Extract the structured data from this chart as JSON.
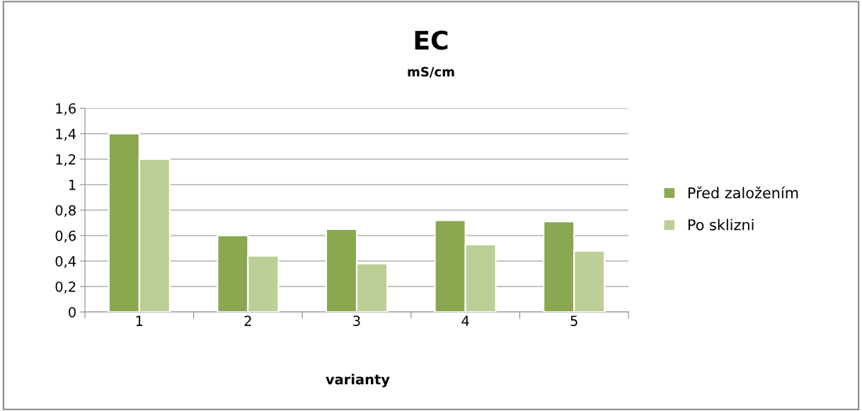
{
  "chart_data": {
    "type": "bar",
    "title": "EC",
    "subtitle": "mS/cm",
    "xlabel": "varianty",
    "categories": [
      "1",
      "2",
      "3",
      "4",
      "5"
    ],
    "series": [
      {
        "name": "Před založením",
        "color": "#8aa84f",
        "values": [
          1.4,
          0.6,
          0.65,
          0.72,
          0.71
        ]
      },
      {
        "name": "Po sklizni",
        "color": "#bccf96",
        "values": [
          1.2,
          0.44,
          0.38,
          0.53,
          0.48
        ]
      }
    ],
    "ylim": [
      0,
      1.6
    ],
    "yticks": [
      0,
      {
        "value": 0.2,
        "label": "0,2"
      },
      {
        "value": 0.4,
        "label": "0,4"
      },
      {
        "value": 0.6,
        "label": "0,6"
      },
      {
        "value": 0.8,
        "label": "0,8"
      },
      1,
      {
        "value": 1.2,
        "label": "1,2"
      },
      {
        "value": 1.4,
        "label": "1,4"
      },
      {
        "value": 1.6,
        "label": "1,6"
      }
    ],
    "grid": "y",
    "legend": "right"
  }
}
